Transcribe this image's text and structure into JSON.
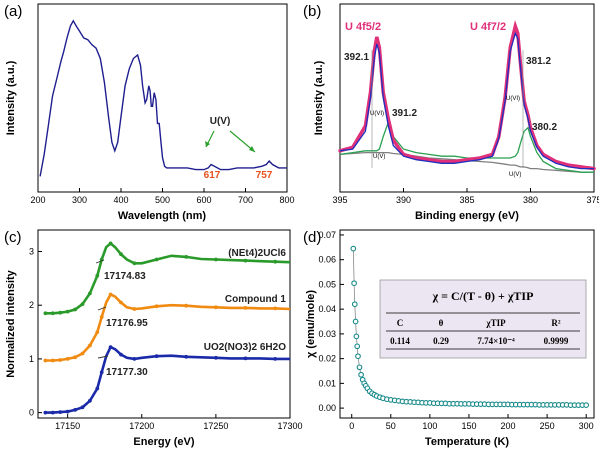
{
  "chart_data": [
    {
      "panel": "(a)",
      "type": "line",
      "xlabel": "Wavelength (nm)",
      "ylabel": "Intensity (a.u.)",
      "xlim": [
        200,
        800
      ],
      "xticks": [
        "200",
        "300",
        "400",
        "500",
        "600",
        "700",
        "800"
      ],
      "color": "#1f1f8f",
      "x": [
        205,
        215,
        225,
        235,
        245,
        255,
        262,
        270,
        278,
        285,
        292,
        300,
        310,
        320,
        330,
        340,
        350,
        360,
        370,
        378,
        385,
        392,
        400,
        410,
        420,
        430,
        440,
        447,
        452,
        458,
        462,
        467,
        470,
        473,
        476,
        480,
        484,
        488,
        492,
        496,
        500,
        505,
        510,
        520,
        530,
        545,
        560,
        580,
        600,
        610,
        617,
        625,
        640,
        660,
        680,
        700,
        720,
        740,
        750,
        757,
        765,
        780,
        800
      ],
      "y": [
        0.05,
        0.18,
        0.35,
        0.52,
        0.62,
        0.72,
        0.78,
        0.86,
        0.93,
        0.96,
        0.93,
        0.9,
        0.86,
        0.85,
        0.82,
        0.8,
        0.74,
        0.6,
        0.4,
        0.25,
        0.2,
        0.25,
        0.4,
        0.58,
        0.68,
        0.74,
        0.76,
        0.7,
        0.58,
        0.48,
        0.5,
        0.58,
        0.55,
        0.46,
        0.46,
        0.54,
        0.5,
        0.36,
        0.36,
        0.26,
        0.16,
        0.11,
        0.1,
        0.1,
        0.1,
        0.1,
        0.1,
        0.09,
        0.09,
        0.1,
        0.12,
        0.11,
        0.09,
        0.09,
        0.1,
        0.1,
        0.1,
        0.11,
        0.12,
        0.14,
        0.12,
        0.1,
        0.1
      ],
      "annotations": [
        {
          "text": "U(V)"
        },
        {
          "text": "617"
        },
        {
          "text": "757"
        }
      ]
    },
    {
      "panel": "(b)",
      "type": "line",
      "xlabel": "Binding energy (eV)",
      "ylabel": "Intensity (a.u.)",
      "xlim": [
        395,
        375
      ],
      "xticks": [
        "395",
        "390",
        "385",
        "380",
        "375"
      ],
      "x": [
        395,
        394,
        393,
        392.6,
        392.3,
        392.1,
        391.9,
        391.6,
        391.2,
        390.8,
        390,
        389,
        388,
        387,
        386,
        385,
        384,
        383,
        382.5,
        382,
        381.6,
        381.2,
        381,
        380.8,
        380.5,
        380.2,
        380,
        379.5,
        379,
        378,
        377,
        376,
        375
      ],
      "series": [
        {
          "color": "#e0307a",
          "values": [
            0.22,
            0.24,
            0.36,
            0.55,
            0.78,
            0.86,
            0.8,
            0.55,
            0.4,
            0.28,
            0.2,
            0.18,
            0.17,
            0.16,
            0.16,
            0.17,
            0.18,
            0.2,
            0.3,
            0.52,
            0.8,
            0.92,
            0.88,
            0.72,
            0.5,
            0.42,
            0.35,
            0.25,
            0.2,
            0.16,
            0.14,
            0.13,
            0.12
          ]
        },
        {
          "color": "#1f2fbf",
          "values": [
            0.22,
            0.23,
            0.33,
            0.52,
            0.74,
            0.82,
            0.77,
            0.52,
            0.36,
            0.25,
            0.19,
            0.17,
            0.16,
            0.15,
            0.15,
            0.16,
            0.17,
            0.19,
            0.29,
            0.5,
            0.78,
            0.88,
            0.85,
            0.7,
            0.48,
            0.4,
            0.33,
            0.24,
            0.19,
            0.15,
            0.13,
            0.12,
            0.12
          ]
        },
        {
          "color": "#2aa050",
          "values": [
            0.2,
            0.21,
            0.22,
            0.22,
            0.22,
            0.22,
            0.23,
            0.3,
            0.38,
            0.3,
            0.23,
            0.21,
            0.2,
            0.19,
            0.19,
            0.18,
            0.18,
            0.18,
            0.18,
            0.18,
            0.18,
            0.19,
            0.21,
            0.26,
            0.33,
            0.35,
            0.3,
            0.21,
            0.16,
            0.12,
            0.11,
            0.1,
            0.1
          ]
        },
        {
          "color": "#808080",
          "values": [
            0.2,
            0.205,
            0.21,
            0.21,
            0.21,
            0.21,
            0.21,
            0.21,
            0.21,
            0.205,
            0.2,
            0.19,
            0.18,
            0.175,
            0.17,
            0.165,
            0.16,
            0.155,
            0.15,
            0.145,
            0.14,
            0.14,
            0.135,
            0.13,
            0.13,
            0.125,
            0.12,
            0.12,
            0.115,
            0.11,
            0.105,
            0.1,
            0.1
          ]
        }
      ],
      "annotations": [
        {
          "text": "U 4f5/2"
        },
        {
          "text": "U 4f7/2"
        },
        {
          "text": "392.1"
        },
        {
          "text": "391.2"
        },
        {
          "text": "381.2"
        },
        {
          "text": "380.2"
        },
        {
          "text": "U(VI)"
        },
        {
          "text": "U(VI)"
        },
        {
          "text": "U(V)"
        },
        {
          "text": "U(V)"
        }
      ]
    },
    {
      "panel": "(c)",
      "type": "line",
      "xlabel": "Energy (eV)",
      "ylabel": "Normalized intensity",
      "xlim": [
        17130,
        17300
      ],
      "ylim": [
        -0.1,
        3.4
      ],
      "xticks": [
        "17150",
        "17200",
        "17250",
        "17300"
      ],
      "yticks": [
        "0",
        "1",
        "2",
        "3"
      ],
      "x": [
        17135,
        17140,
        17145,
        17150,
        17155,
        17160,
        17165,
        17170,
        17173,
        17176,
        17179,
        17182,
        17186,
        17190,
        17195,
        17200,
        17210,
        17220,
        17230,
        17240,
        17250,
        17260,
        17270,
        17280,
        17290,
        17300
      ],
      "series": [
        {
          "name": "(NEt4)2UCl6",
          "color": "#2a9a2a",
          "values": [
            1.85,
            1.85,
            1.86,
            1.88,
            1.92,
            2.02,
            2.22,
            2.55,
            2.85,
            3.08,
            3.15,
            3.08,
            2.95,
            2.85,
            2.78,
            2.78,
            2.85,
            2.92,
            2.9,
            2.86,
            2.85,
            2.84,
            2.83,
            2.82,
            2.81,
            2.8
          ]
        },
        {
          "name": "Compound 1",
          "color": "#f08a10",
          "values": [
            0.97,
            0.97,
            0.98,
            1.0,
            1.03,
            1.1,
            1.25,
            1.5,
            1.78,
            2.05,
            2.2,
            2.16,
            2.05,
            1.96,
            1.93,
            1.94,
            1.98,
            2.0,
            1.99,
            1.97,
            1.96,
            1.95,
            1.95,
            1.94,
            1.94,
            1.93
          ]
        },
        {
          "name": "UO2(NO3)2·6H2O",
          "color": "#1a2aa8",
          "values": [
            0.0,
            0.0,
            0.01,
            0.02,
            0.05,
            0.1,
            0.22,
            0.45,
            0.75,
            1.05,
            1.22,
            1.18,
            1.08,
            1.02,
            1.0,
            1.02,
            1.05,
            1.06,
            1.04,
            1.03,
            1.02,
            1.01,
            1.01,
            1.01,
            1.0,
            1.0
          ]
        }
      ],
      "annotations": [
        {
          "text": "17174.83"
        },
        {
          "text": "17176.95"
        },
        {
          "text": "17177.30"
        },
        {
          "text": "(NEt4)2UCl6"
        },
        {
          "text": "Compound 1"
        },
        {
          "text": "UO2(NO3)2 6H2O"
        }
      ]
    },
    {
      "panel": "(d)",
      "type": "scatter",
      "xlabel": "Temperature (K)",
      "ylabel": "χ (emu/mole)",
      "xlim": [
        -15,
        310
      ],
      "ylim": [
        -0.004,
        0.072
      ],
      "xticks": [
        "0",
        "50",
        "100",
        "150",
        "200",
        "250",
        "300"
      ],
      "yticks": [
        "0.00",
        "0.01",
        "0.02",
        "0.03",
        "0.04",
        "0.05",
        "0.06",
        "0.07"
      ],
      "color": "#1a8a8a",
      "x": [
        2,
        3,
        4,
        5,
        6,
        7,
        8,
        10,
        12,
        14,
        16,
        18,
        20,
        23,
        26,
        29,
        32,
        36,
        40,
        45,
        50,
        55,
        60,
        65,
        70,
        75,
        80,
        85,
        90,
        95,
        100,
        105,
        110,
        115,
        120,
        125,
        130,
        135,
        140,
        145,
        150,
        155,
        160,
        165,
        170,
        175,
        180,
        185,
        190,
        195,
        200,
        205,
        210,
        215,
        220,
        225,
        230,
        235,
        240,
        245,
        250,
        255,
        260,
        265,
        270,
        275,
        280,
        285,
        290,
        295,
        300
      ],
      "y": [
        0.0645,
        0.0505,
        0.042,
        0.035,
        0.029,
        0.025,
        0.021,
        0.0165,
        0.0135,
        0.0115,
        0.01,
        0.009,
        0.008,
        0.0068,
        0.006,
        0.0054,
        0.0049,
        0.0044,
        0.004,
        0.0036,
        0.0033,
        0.0031,
        0.0029,
        0.0027,
        0.0026,
        0.0025,
        0.0024,
        0.0023,
        0.0022,
        0.0021,
        0.0021,
        0.002,
        0.002,
        0.0019,
        0.0019,
        0.0018,
        0.0018,
        0.0018,
        0.0017,
        0.0017,
        0.0017,
        0.0016,
        0.0016,
        0.0016,
        0.0016,
        0.0015,
        0.0015,
        0.0015,
        0.0015,
        0.0015,
        0.0015,
        0.0014,
        0.0014,
        0.0014,
        0.0014,
        0.0014,
        0.0014,
        0.0014,
        0.0013,
        0.0013,
        0.0013,
        0.0013,
        0.0013,
        0.0013,
        0.0013,
        0.0013,
        0.0012,
        0.0012,
        0.0012,
        0.0012,
        0.0012
      ],
      "fit_box": {
        "equation": "χ = C/(T - θ) + χTIP",
        "columns": [
          "C",
          "θ",
          "χTIP",
          "R²"
        ],
        "values": [
          "0.114",
          "0.29",
          "7.74×10⁻⁴",
          "0.9999"
        ]
      }
    }
  ]
}
